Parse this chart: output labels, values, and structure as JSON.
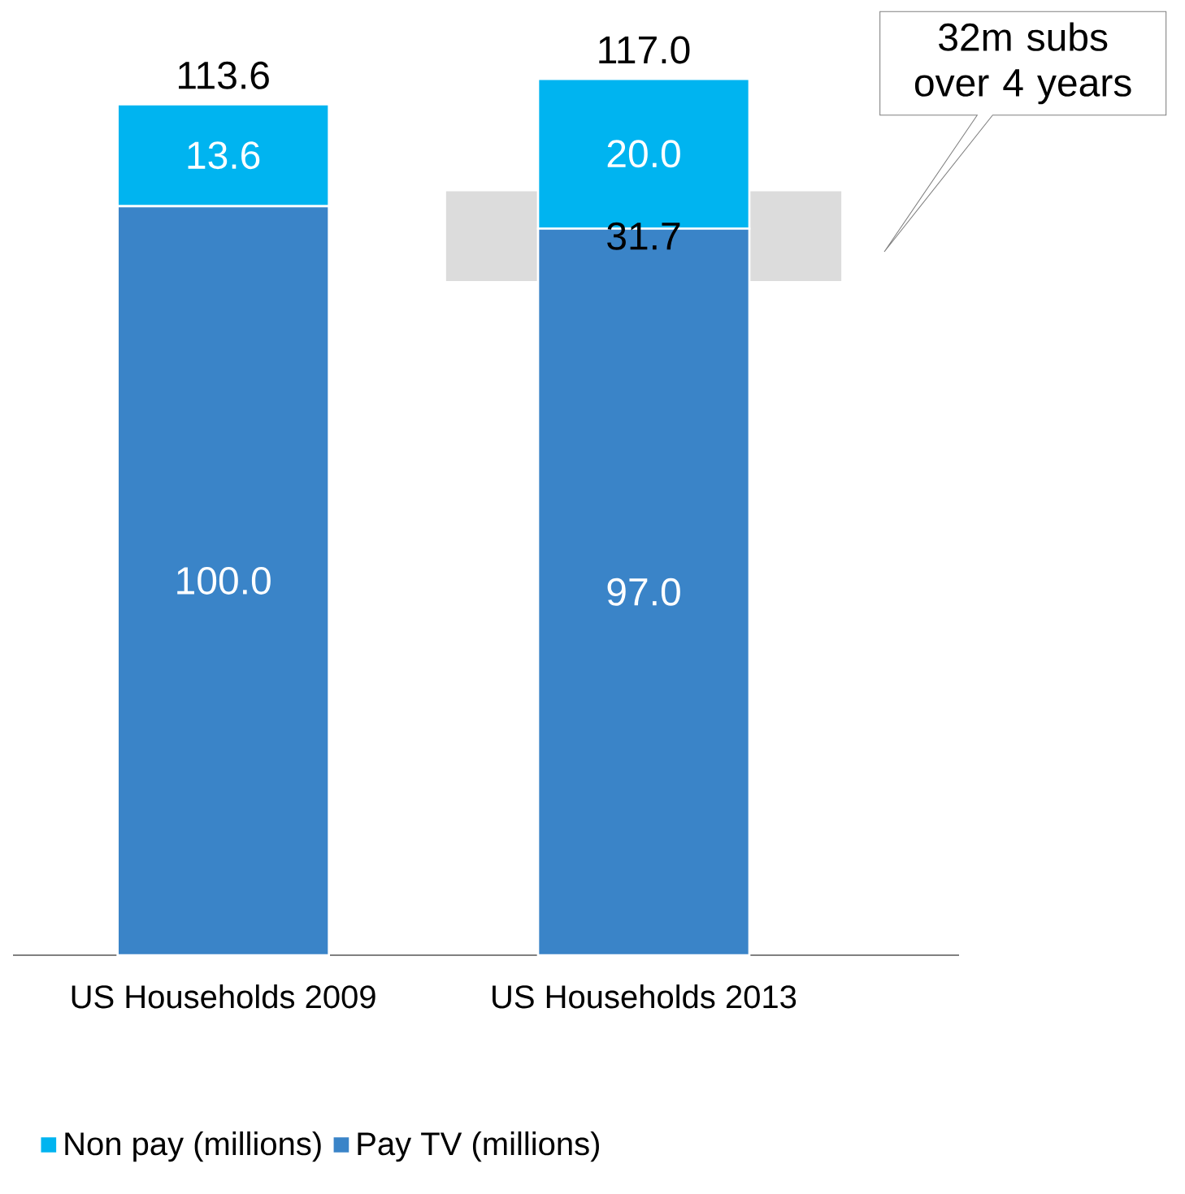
{
  "chart_data": {
    "type": "bar",
    "stacked": true,
    "legend": "bottom",
    "categories": [
      "US Households 2009",
      "US Households 2013"
    ],
    "series": [
      {
        "name": "Pay TV (millions)",
        "color": "#3a84c8",
        "values": [
          100.0,
          97.0
        ],
        "value_labels": [
          "100.0",
          "97.0"
        ]
      },
      {
        "name": "Non pay (millions)",
        "color": "#00b4f0",
        "values": [
          13.6,
          20.0
        ],
        "value_labels": [
          "13.6",
          "20.0"
        ]
      }
    ],
    "totals": [
      "113.6",
      "117.0"
    ],
    "bands": [
      {
        "axis": "y",
        "from": 90,
        "to": 102,
        "label": "31.7",
        "color": "#dcdcdc"
      }
    ],
    "annotations": [
      "32m subs over 4 years"
    ]
  }
}
